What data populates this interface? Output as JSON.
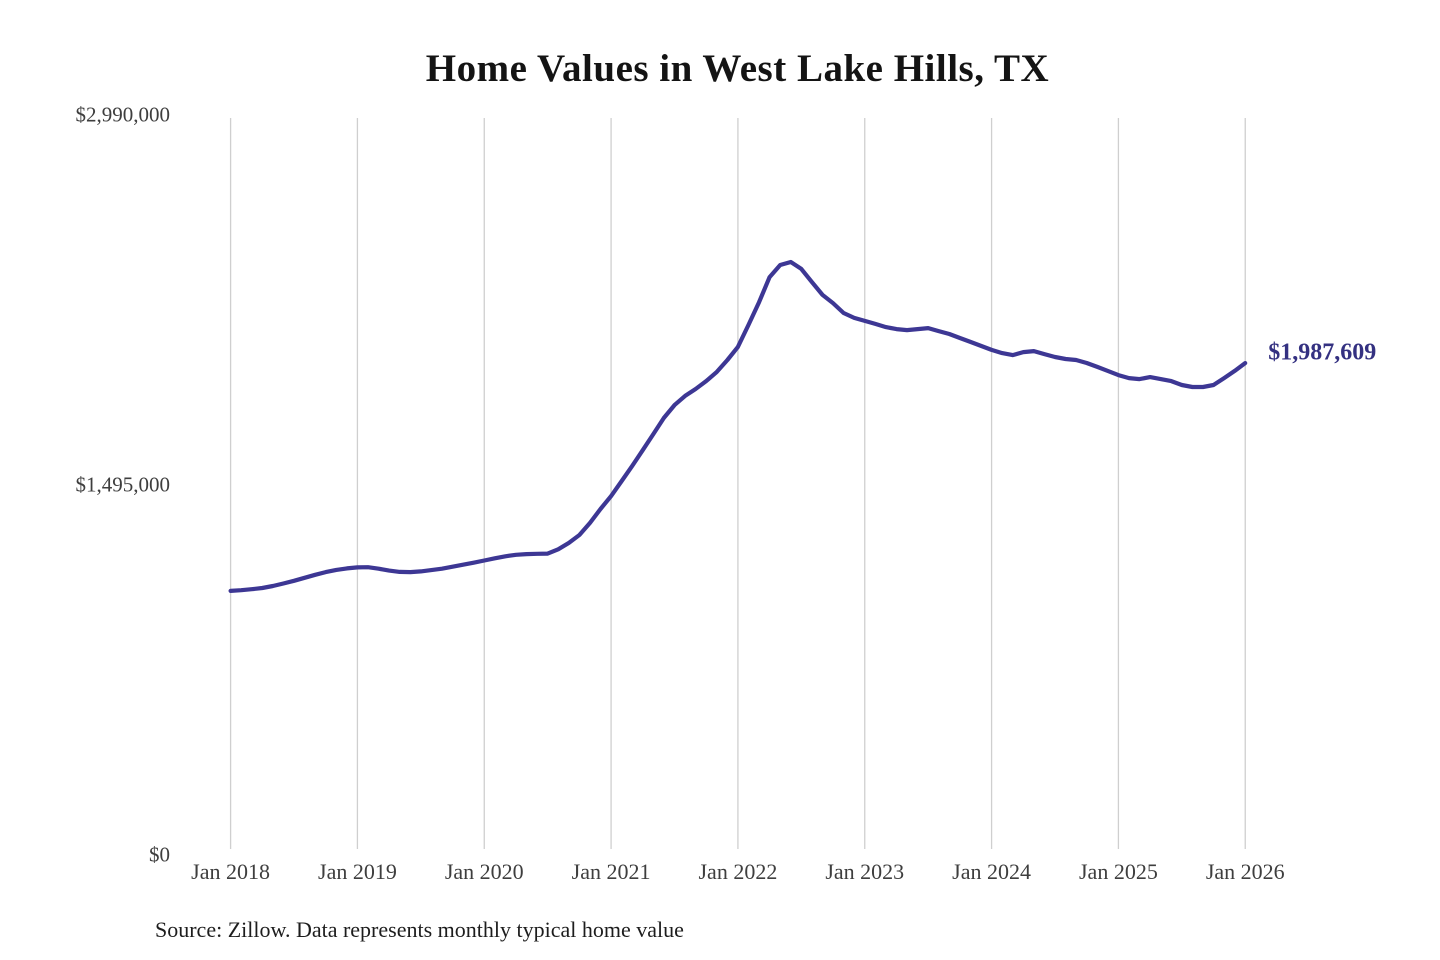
{
  "chart_data": {
    "type": "line",
    "title": "Home Values in West Lake Hills, TX",
    "source_note": "Source: Zillow. Data represents monthly typical home value",
    "x_interval": "monthly",
    "x_start": "Jan 2018",
    "x_end": "Jan 2026",
    "x_tick_labels": [
      "Jan 2018",
      "Jan 2019",
      "Jan 2020",
      "Jan 2021",
      "Jan 2022",
      "Jan 2023",
      "Jan 2024",
      "Jan 2025",
      "Jan 2026"
    ],
    "y_ticks": [
      {
        "label": "$0",
        "value": 0
      },
      {
        "label": "$1,495,000",
        "value": 1495000
      },
      {
        "label": "$2,990,000",
        "value": 2990000
      }
    ],
    "ylim": [
      0,
      2990000
    ],
    "grid": "vertical-only",
    "legend": "none",
    "line_color": "#3d3794",
    "grid_color": "#cfcfcf",
    "annotation": {
      "label": "$1,987,609",
      "value": 1987609,
      "color": "#343181"
    },
    "series": [
      {
        "name": "Monthly typical home value",
        "values": [
          1067000,
          1070000,
          1074000,
          1079000,
          1087000,
          1097000,
          1108000,
          1120000,
          1132000,
          1143000,
          1152000,
          1158000,
          1162000,
          1163000,
          1157000,
          1149000,
          1144000,
          1143000,
          1146000,
          1151000,
          1157000,
          1165000,
          1173000,
          1181000,
          1190000,
          1199000,
          1207000,
          1213000,
          1216000,
          1217000,
          1218000,
          1235000,
          1261000,
          1293000,
          1342000,
          1398000,
          1450000,
          1511000,
          1572000,
          1636000,
          1701000,
          1766000,
          1818000,
          1855000,
          1883000,
          1915000,
          1952000,
          2000000,
          2053000,
          2142000,
          2234000,
          2335000,
          2384000,
          2396000,
          2368000,
          2315000,
          2263000,
          2230000,
          2190000,
          2170000,
          2158000,
          2146000,
          2133000,
          2125000,
          2121000,
          2125000,
          2129000,
          2117000,
          2105000,
          2089000,
          2073000,
          2057000,
          2041000,
          2028000,
          2020000,
          2032000,
          2036000,
          2024000,
          2012000,
          2004000,
          2000000,
          1988000,
          1972000,
          1956000,
          1939000,
          1927000,
          1923000,
          1931000,
          1923000,
          1915000,
          1899000,
          1891000,
          1891000,
          1899000,
          1927000,
          1956000,
          1987609
        ]
      }
    ]
  }
}
